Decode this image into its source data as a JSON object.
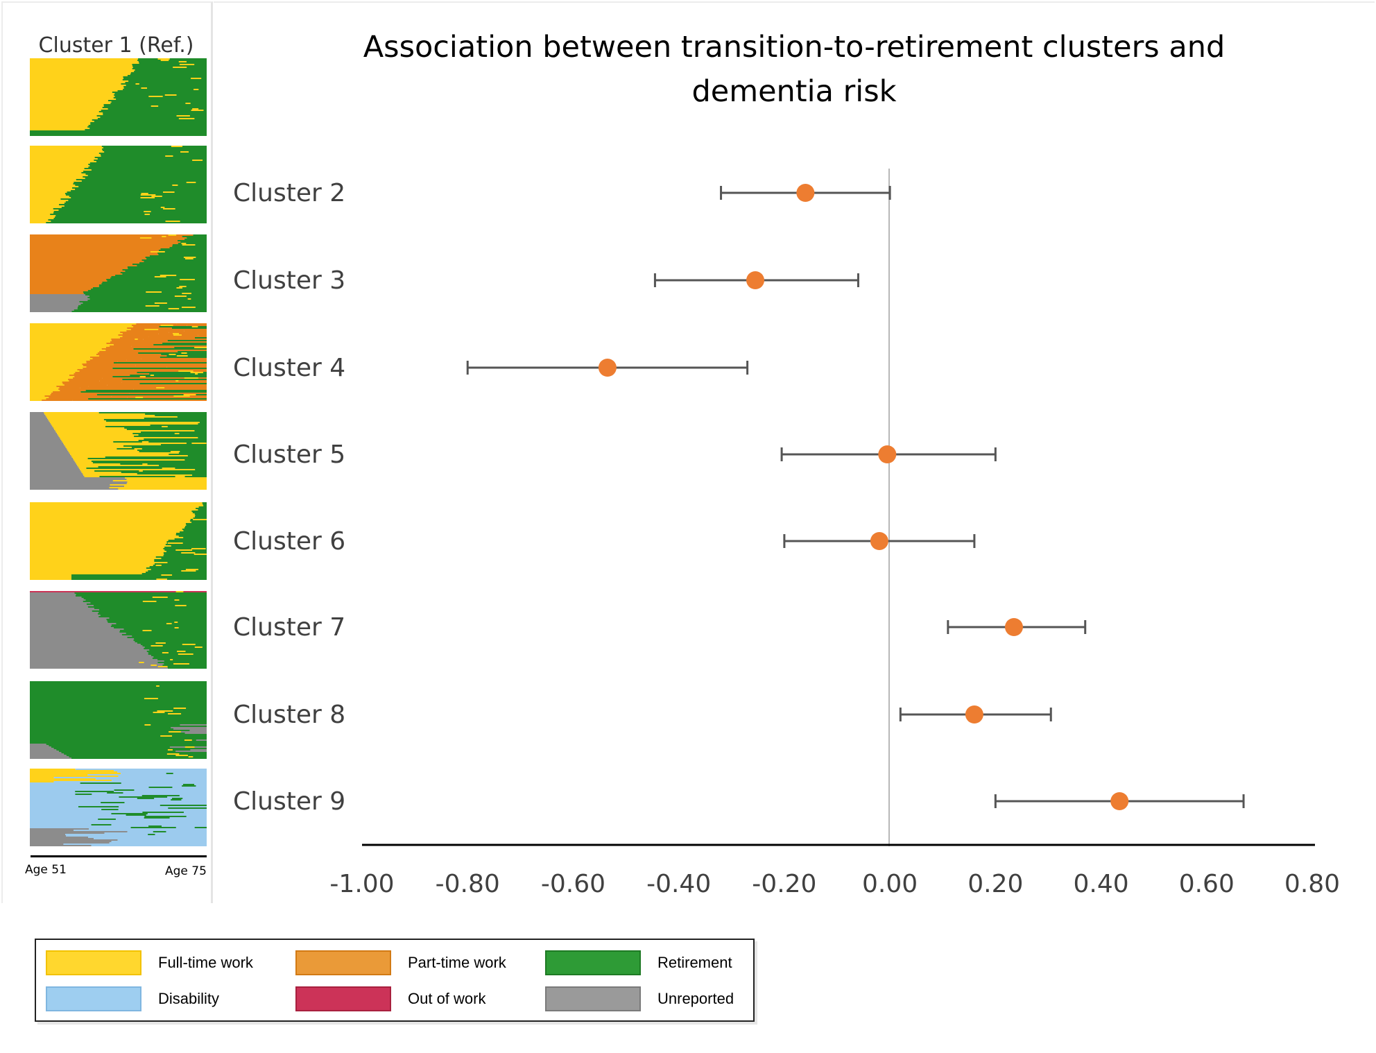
{
  "figure": {
    "title": "Association between transition-to-retirement clusters and dementia risk",
    "title_line1": "Association between transition-to-retirement clusters and",
    "title_line2": "dementia risk",
    "reference_label": "Cluster 1 (Ref.)",
    "age_axis": {
      "start": "Age 51",
      "end": "Age 75"
    }
  },
  "colors": {
    "full_time": "#FFD21A",
    "part_time": "#E8821A",
    "retirement": "#1F8C2A",
    "disability": "#9CCBEE",
    "out_of_work": "#CC3355",
    "unreported": "#8C8C8C",
    "point": "#ED7D31",
    "whisker": "#555555"
  },
  "thumbnails": [
    {
      "name": "thumb-cluster-1",
      "composition": [
        "full_time",
        "retirement"
      ]
    },
    {
      "name": "thumb-cluster-2",
      "composition": [
        "full_time",
        "retirement"
      ]
    },
    {
      "name": "thumb-cluster-3",
      "composition": [
        "part_time",
        "retirement",
        "unreported"
      ]
    },
    {
      "name": "thumb-cluster-4",
      "composition": [
        "full_time",
        "part_time",
        "retirement"
      ]
    },
    {
      "name": "thumb-cluster-5",
      "composition": [
        "unreported",
        "full_time",
        "retirement"
      ]
    },
    {
      "name": "thumb-cluster-6",
      "composition": [
        "full_time",
        "retirement"
      ]
    },
    {
      "name": "thumb-cluster-7",
      "composition": [
        "unreported",
        "retirement",
        "out_of_work"
      ]
    },
    {
      "name": "thumb-cluster-8",
      "composition": [
        "retirement",
        "unreported"
      ]
    },
    {
      "name": "thumb-cluster-9",
      "composition": [
        "disability",
        "full_time",
        "retirement",
        "unreported"
      ]
    }
  ],
  "legend": {
    "items": [
      {
        "label": "Full-time work",
        "color": "#FFD72E",
        "border": "#F2C200"
      },
      {
        "label": "Part-time work",
        "color": "#EA9A38",
        "border": "#D27A14"
      },
      {
        "label": "Retirement",
        "color": "#2E9B36",
        "border": "#1E7A24"
      },
      {
        "label": "Disability",
        "color": "#9ECEF0",
        "border": "#7FB6E0"
      },
      {
        "label": "Out of work",
        "color": "#CC3358",
        "border": "#A8203E"
      },
      {
        "label": "Unreported",
        "color": "#9A9A9A",
        "border": "#7A7A7A"
      }
    ]
  },
  "chart_data": {
    "type": "scatter",
    "subtype": "forest",
    "title": "Association between transition-to-retirement clusters and dementia risk",
    "xlabel": "",
    "ylabel": "",
    "xlim": [
      -1.0,
      0.8
    ],
    "xticks": [
      -1.0,
      -0.8,
      -0.6,
      -0.4,
      -0.2,
      0.0,
      0.2,
      0.4,
      0.6,
      0.8
    ],
    "xtick_labels": [
      "-1.00",
      "-0.80",
      "-0.60",
      "-0.40",
      "-0.20",
      "0.00",
      "0.20",
      "0.40",
      "0.60",
      "0.80"
    ],
    "reference_line": 0.0,
    "grid": false,
    "categories": [
      "Cluster 2",
      "Cluster 3",
      "Cluster 4",
      "Cluster 5",
      "Cluster 6",
      "Cluster 7",
      "Cluster 8",
      "Cluster 9"
    ],
    "estimates": [
      -0.16,
      -0.255,
      -0.535,
      -0.005,
      -0.02,
      0.235,
      0.16,
      0.435
    ],
    "ci_lower": [
      -0.32,
      -0.445,
      -0.8,
      -0.205,
      -0.2,
      0.11,
      0.02,
      0.2
    ],
    "ci_upper": [
      0.0,
      -0.06,
      -0.27,
      0.2,
      0.16,
      0.37,
      0.305,
      0.67
    ]
  }
}
